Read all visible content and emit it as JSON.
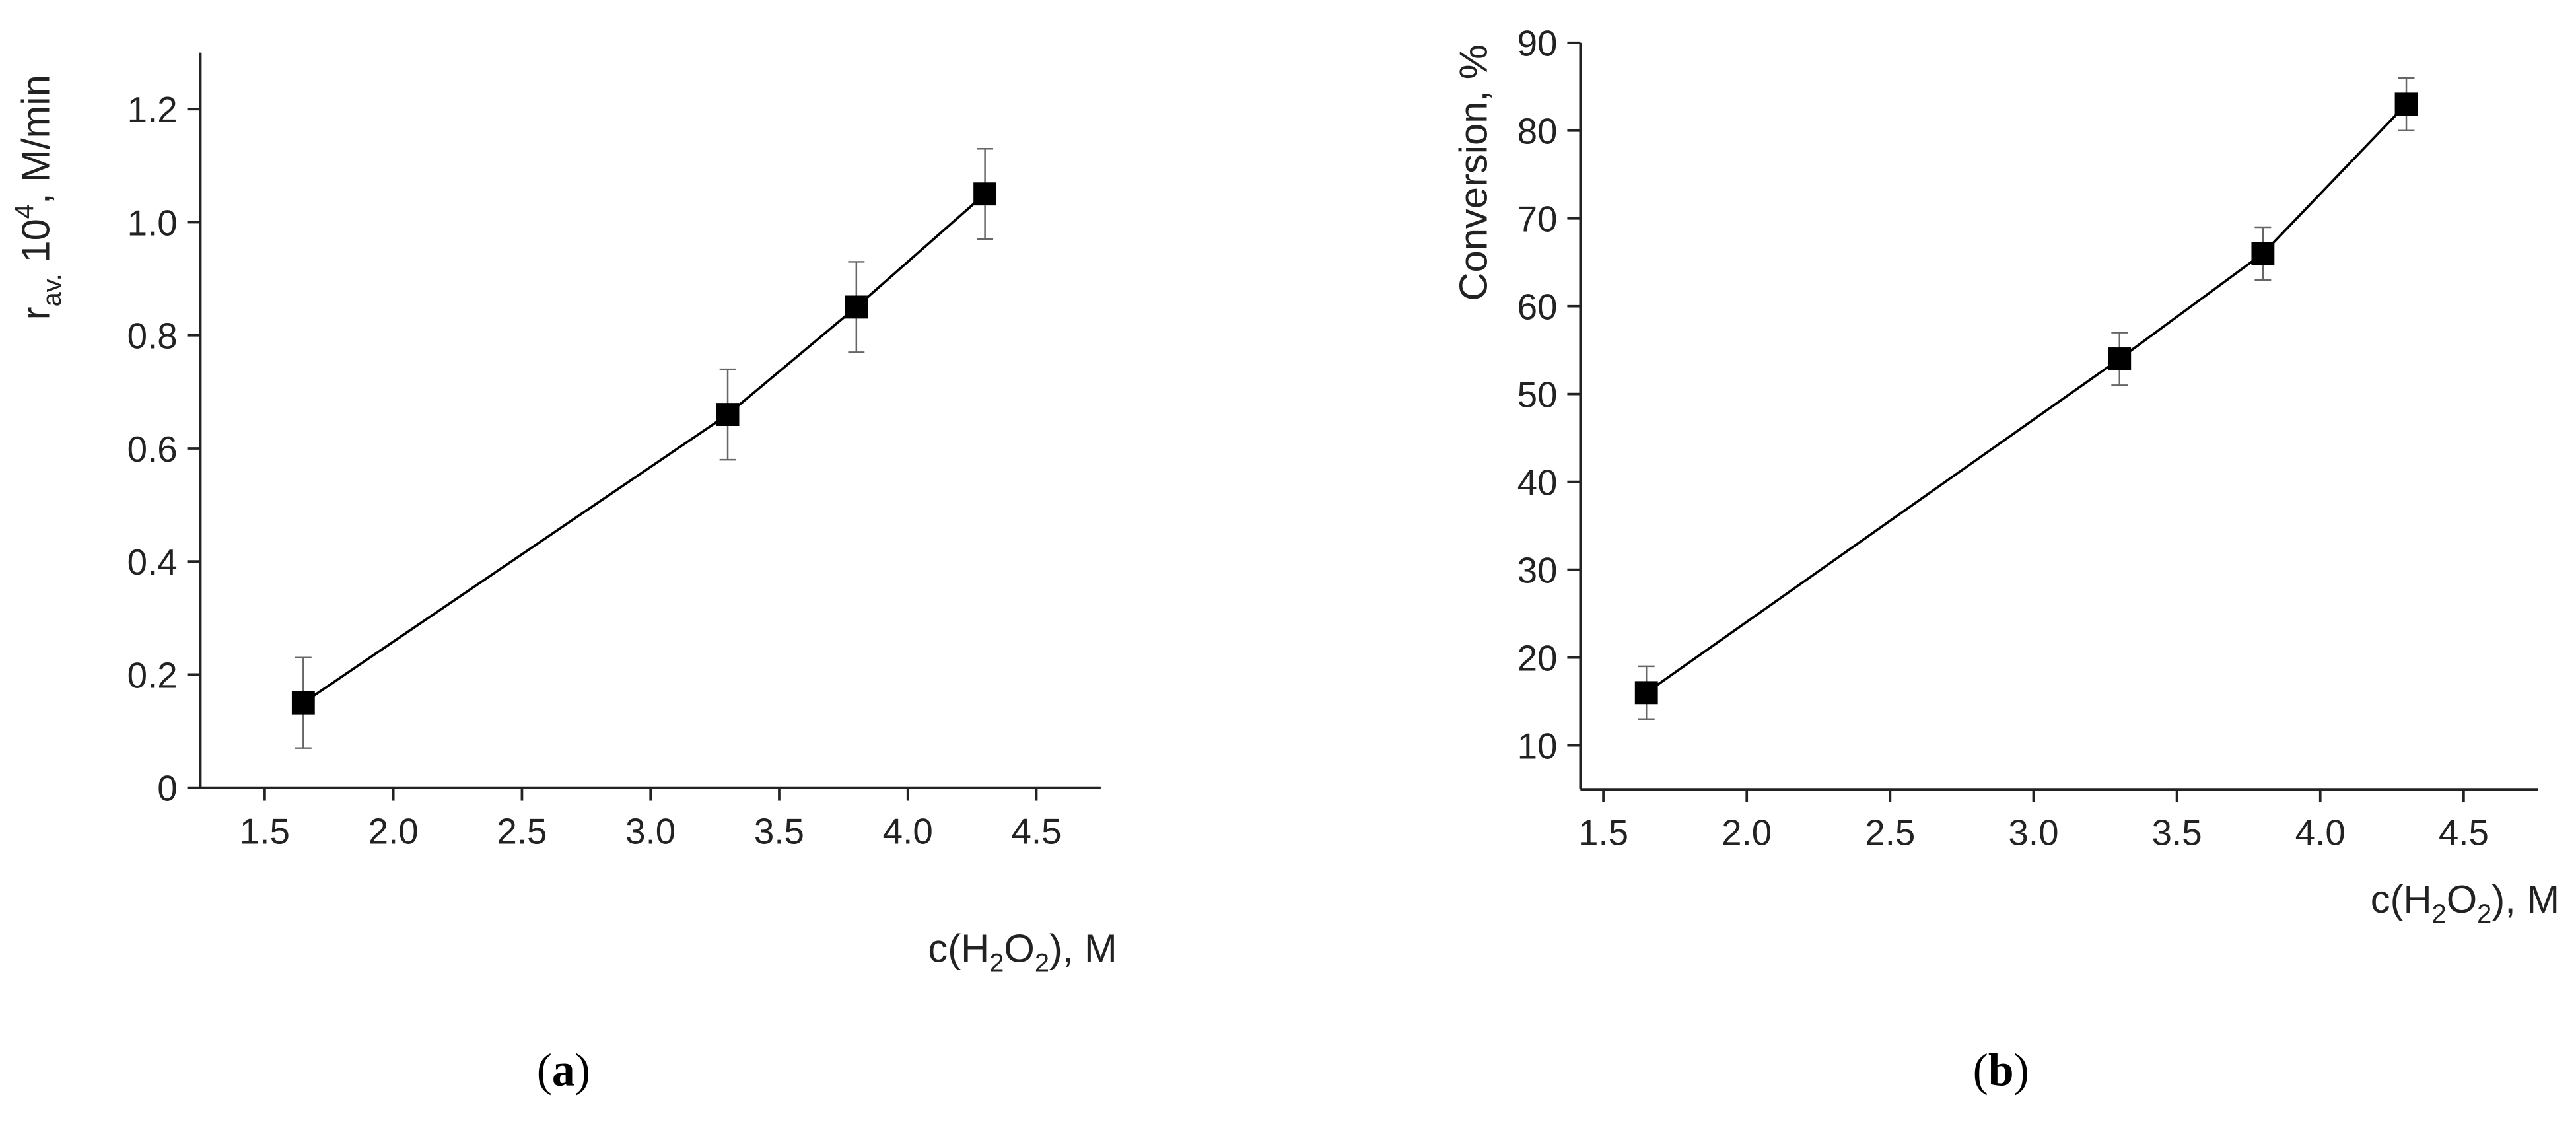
{
  "chart_data": [
    {
      "type": "line",
      "x": [
        1.65,
        3.3,
        3.8,
        4.3
      ],
      "series": [
        {
          "color": "#000000",
          "values": [
            0.15,
            0.66,
            0.85,
            1.05
          ],
          "errors": [
            0.08,
            0.08,
            0.08,
            0.08
          ]
        }
      ],
      "xlim": [
        1.25,
        4.75
      ],
      "ylim": [
        0,
        1.3
      ],
      "xticks": [
        1.5,
        {
          "value": 2,
          "label": "2.0"
        },
        2.5,
        {
          "value": 3,
          "label": "3.0"
        },
        3.5,
        {
          "value": 4,
          "label": "4.0"
        },
        4.5
      ],
      "yticks": [
        0,
        0.2,
        0.4,
        0.6,
        0.8,
        {
          "value": 1,
          "label": "1.0"
        },
        1.2
      ],
      "xlabel": [
        "c(H",
        "2",
        "O",
        "2",
        "), M"
      ],
      "ylabel": [
        "r",
        "av.",
        " 10",
        "4",
        ", M/min"
      ],
      "panel": [
        "(",
        "a",
        ")"
      ]
    },
    {
      "type": "line",
      "x": [
        1.65,
        3.3,
        3.8,
        4.3
      ],
      "series": [
        {
          "color": "#000000",
          "values": [
            16,
            54,
            66,
            83
          ],
          "errors": [
            3,
            3,
            3,
            3
          ]
        }
      ],
      "xlim": [
        1.42,
        4.76
      ],
      "ylim": [
        5,
        90
      ],
      "xticks": [
        1.5,
        {
          "value": 2,
          "label": "2.0"
        },
        2.5,
        {
          "value": 3,
          "label": "3.0"
        },
        3.5,
        {
          "value": 4,
          "label": "4.0"
        },
        4.5
      ],
      "yticks": [
        10,
        20,
        30,
        40,
        50,
        60,
        70,
        80,
        90
      ],
      "xlabel": [
        "c(H",
        "2",
        "O",
        "2",
        "), M"
      ],
      "ylabel": [
        "Conversion, %"
      ],
      "panel": [
        "(",
        "b",
        ")"
      ]
    }
  ]
}
